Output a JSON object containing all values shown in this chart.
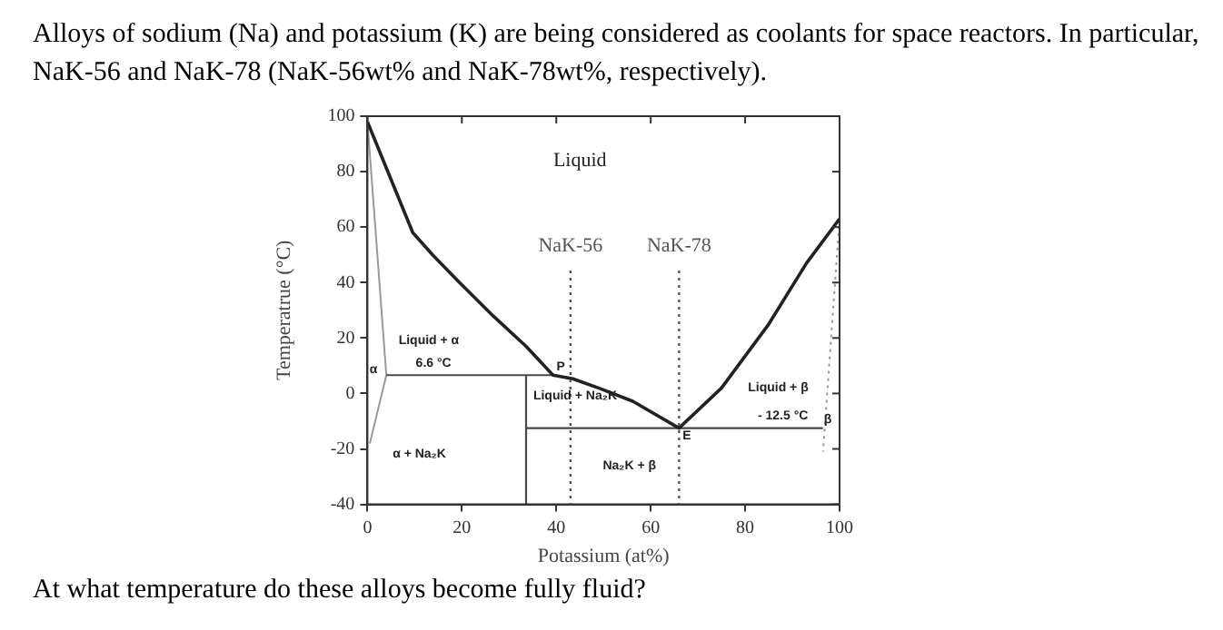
{
  "chart_data": {
    "type": "line",
    "title": "Alloys of sodium (Na) and potassium (K) are being considered as coolants for space reactors.  In particular, NaK-56 and NaK-78 (NaK-56wt% and NaK-78wt%, respectively).",
    "xlabel": "Potassium (at%)",
    "ylabel": "Temperatrue (°C)",
    "xlim": [
      0,
      100
    ],
    "xticks": [
      0,
      20,
      40,
      60,
      80,
      100
    ],
    "ylim": [
      -40,
      100
    ],
    "yticks": [
      -40,
      -20,
      0,
      20,
      40,
      60,
      80,
      100
    ],
    "grid": false,
    "legend": false,
    "marker": "none",
    "line_style": "solid",
    "series": [
      {
        "color": "#222222",
        "x": [
          0,
          9.6,
          13.8,
          19.5,
          26.6,
          33.6,
          39.3,
          43.5,
          49.2,
          56.2,
          66,
          75,
          85,
          93,
          100
        ],
        "values": [
          98,
          58,
          50,
          40,
          28,
          17,
          6.6,
          5.3,
          1.8,
          -2.8,
          -12.5,
          2,
          25,
          47,
          63
        ]
      },
      {
        "color": "#4a4a4a",
        "x": [
          4,
          39.3,
          33.6,
          33.6,
          33.6,
          96.5
        ],
        "values": [
          6.6,
          6.6,
          6.6,
          -40,
          -12.5,
          -12.5
        ]
      },
      {
        "color": "#999999",
        "x": [
          0,
          4,
          0.5
        ],
        "values": [
          98,
          6.6,
          -18
        ]
      },
      {
        "color": "#999999",
        "line_style": "dotted",
        "x": [
          100,
          96.5
        ],
        "values": [
          63,
          -21
        ]
      }
    ],
    "ref_lines": [
      {
        "axis": "x",
        "value": 43,
        "label": "NaK-56",
        "line_style": "dotted",
        "color": "#555555"
      },
      {
        "axis": "x",
        "value": 66,
        "label": "NaK-78",
        "line_style": "dotted",
        "color": "#555555"
      }
    ],
    "annotations": [
      "Liquid",
      "Liquid + α",
      {
        "text": "6.6 °C",
        "x": 14,
        "y": 6.6
      },
      {
        "text": "P",
        "x": 39.3,
        "y": 6.6
      },
      "Liquid + Na₂K",
      {
        "text": "E",
        "x": 66,
        "y": -12.5
      },
      "Liquid + β",
      {
        "text": "- 12.5 °C",
        "x": 88,
        "y": -12.5
      },
      "β",
      "α",
      "α + Na₂K",
      "Na₂K + β",
      "At what temperature do these alloys become fully fluid?"
    ]
  }
}
